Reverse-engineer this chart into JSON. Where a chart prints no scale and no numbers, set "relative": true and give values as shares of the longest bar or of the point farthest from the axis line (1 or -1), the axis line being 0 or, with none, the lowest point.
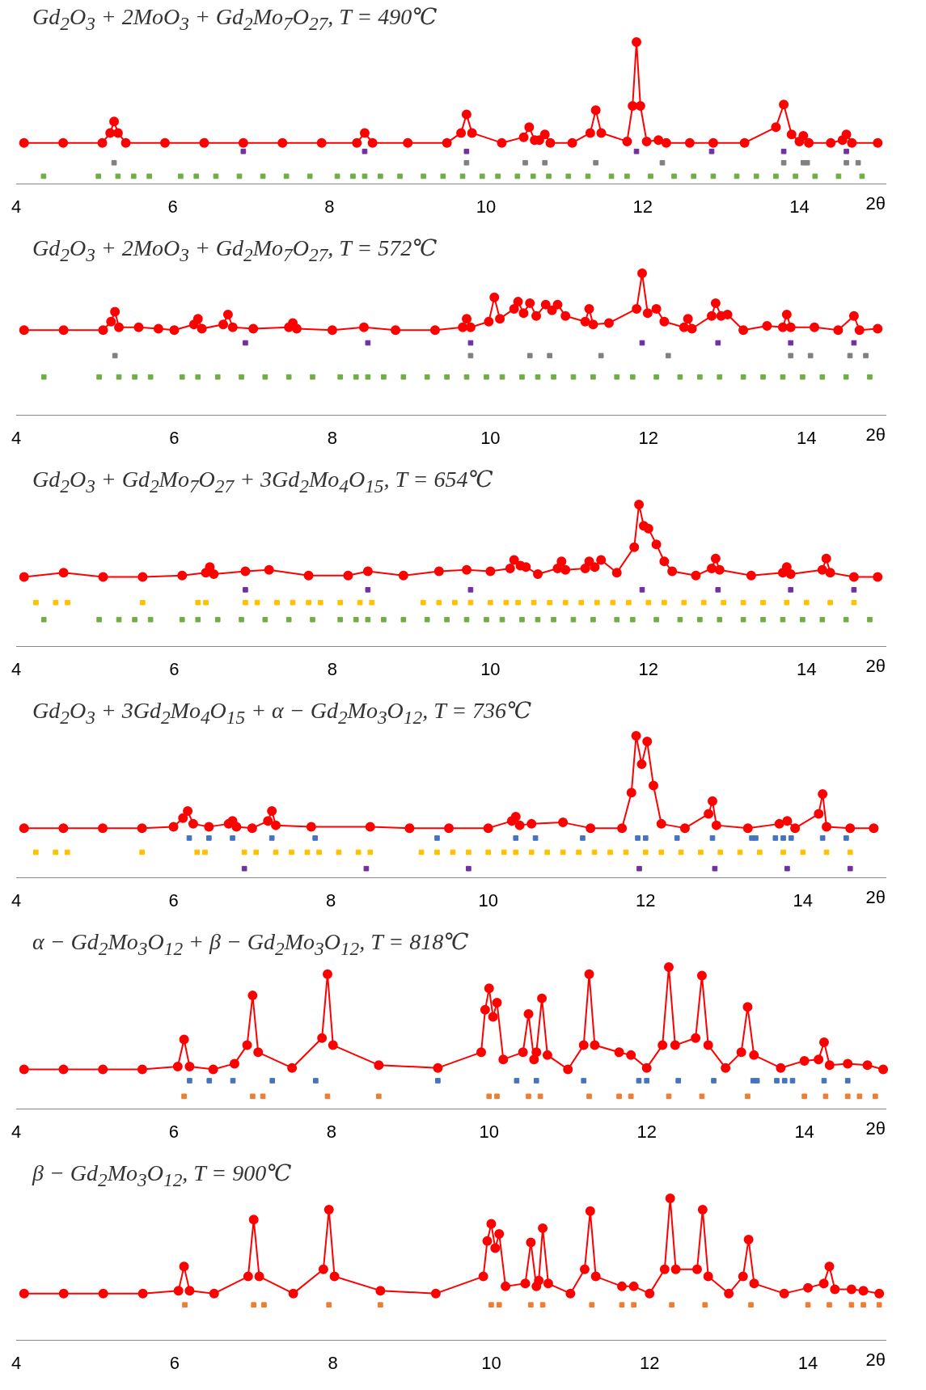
{
  "chart_data": [
    {
      "type": "line",
      "title": "Gd$_{2}$O$_{3}$ + 2MoO$_{3}$ + Gd$_{2}$Mo$_{7}$O$_{27}$, T = 490℃",
      "xlabel": "2θ",
      "relative": true,
      "marker": "circle",
      "xlim": [
        4,
        15.1
      ],
      "xticks": [
        4,
        6,
        8,
        10,
        12,
        14
      ],
      "series": [
        {
          "color": "#ff0000",
          "x": [
            4.1,
            4.6,
            5.1,
            5.2,
            5.25,
            5.3,
            5.4,
            5.9,
            6.4,
            6.9,
            7.4,
            7.9,
            8.35,
            8.45,
            8.55,
            9.0,
            9.5,
            9.68,
            9.75,
            9.82,
            10.2,
            10.48,
            10.55,
            10.62,
            10.68,
            10.75,
            10.82,
            11.1,
            11.33,
            11.4,
            11.47,
            11.8,
            11.87,
            11.92,
            11.97,
            12.05,
            12.2,
            12.3,
            12.6,
            12.9,
            13.3,
            13.7,
            13.8,
            13.9,
            14.0,
            14.05,
            14.12,
            14.4,
            14.55,
            14.6,
            14.67,
            15.0
          ],
          "values": [
            0.29,
            0.29,
            0.29,
            0.36,
            0.44,
            0.36,
            0.29,
            0.29,
            0.29,
            0.29,
            0.29,
            0.29,
            0.29,
            0.36,
            0.29,
            0.29,
            0.29,
            0.36,
            0.49,
            0.36,
            0.29,
            0.33,
            0.4,
            0.31,
            0.31,
            0.35,
            0.29,
            0.29,
            0.36,
            0.52,
            0.36,
            0.3,
            0.55,
            1.0,
            0.55,
            0.3,
            0.31,
            0.29,
            0.29,
            0.29,
            0.29,
            0.4,
            0.56,
            0.35,
            0.3,
            0.34,
            0.29,
            0.29,
            0.31,
            0.35,
            0.29,
            0.29
          ]
        },
        {
          "type": "scatter",
          "marker": "square",
          "color": "#7030a0",
          "x": [
            6.9,
            8.45,
            9.75,
            11.92,
            12.88,
            13.8,
            14.6
          ],
          "values": [
            0.23,
            0.23,
            0.23,
            0.23,
            0.23,
            0.23,
            0.23
          ]
        },
        {
          "type": "scatter",
          "marker": "square",
          "color": "#808080",
          "x": [
            5.25,
            9.75,
            10.5,
            10.75,
            11.4,
            12.25,
            13.8,
            14.05,
            14.1,
            14.6,
            14.75
          ],
          "values": [
            0.15,
            0.15,
            0.15,
            0.15,
            0.15,
            0.15,
            0.15,
            0.15,
            0.15,
            0.15,
            0.15
          ]
        },
        {
          "type": "scatter",
          "marker": "square",
          "color": "#70ad47",
          "x": [
            4.35,
            5.05,
            5.3,
            5.5,
            5.7,
            6.1,
            6.3,
            6.55,
            6.85,
            7.15,
            7.45,
            7.75,
            8.1,
            8.3,
            8.45,
            8.65,
            8.9,
            9.2,
            9.45,
            9.7,
            9.95,
            10.15,
            10.4,
            10.6,
            10.8,
            11.05,
            11.3,
            11.6,
            11.8,
            12.1,
            12.4,
            12.65,
            12.9,
            13.2,
            13.45,
            13.7,
            13.95,
            14.2,
            14.5,
            14.8
          ],
          "values": [
            0.055,
            0.055,
            0.055,
            0.055,
            0.055,
            0.055,
            0.055,
            0.055,
            0.055,
            0.055,
            0.055,
            0.055,
            0.055,
            0.055,
            0.055,
            0.055,
            0.055,
            0.055,
            0.055,
            0.055,
            0.055,
            0.055,
            0.055,
            0.055,
            0.055,
            0.055,
            0.055,
            0.055,
            0.055,
            0.055,
            0.055,
            0.055,
            0.055,
            0.055,
            0.055,
            0.055,
            0.055,
            0.055,
            0.055,
            0.055
          ]
        }
      ]
    },
    {
      "type": "line",
      "title": "Gd$_{2}$O$_{3}$ + 2MoO$_{3}$ + Gd$_{2}$Mo$_{7}$O$_{27}$, T = 572℃",
      "xlabel": "2θ",
      "relative": true,
      "marker": "circle",
      "xlim": [
        4,
        15
      ],
      "xticks": [
        4,
        6,
        8,
        10,
        12,
        14
      ],
      "series": [
        {
          "color": "#ff0000",
          "x": [
            4.1,
            4.6,
            5.1,
            5.2,
            5.25,
            5.3,
            5.55,
            5.8,
            6.0,
            6.25,
            6.3,
            6.35,
            6.62,
            6.68,
            6.74,
            7.0,
            7.45,
            7.5,
            7.55,
            8.0,
            8.4,
            8.8,
            9.3,
            9.65,
            9.7,
            9.75,
            9.98,
            10.05,
            10.12,
            10.3,
            10.35,
            10.42,
            10.5,
            10.58,
            10.7,
            10.78,
            10.85,
            10.95,
            11.2,
            11.25,
            11.3,
            11.5,
            11.85,
            11.92,
            11.99,
            12.1,
            12.2,
            12.45,
            12.5,
            12.55,
            12.8,
            12.85,
            12.92,
            13.0,
            13.2,
            13.5,
            13.7,
            13.75,
            13.8,
            14.1,
            14.4,
            14.6,
            14.67,
            14.9
          ],
          "values": [
            0.6,
            0.6,
            0.6,
            0.66,
            0.73,
            0.62,
            0.62,
            0.61,
            0.6,
            0.64,
            0.68,
            0.61,
            0.64,
            0.71,
            0.62,
            0.61,
            0.62,
            0.65,
            0.61,
            0.6,
            0.62,
            0.6,
            0.6,
            0.62,
            0.68,
            0.62,
            0.66,
            0.83,
            0.68,
            0.75,
            0.8,
            0.72,
            0.79,
            0.7,
            0.78,
            0.74,
            0.78,
            0.7,
            0.66,
            0.75,
            0.64,
            0.65,
            0.75,
            1.0,
            0.72,
            0.75,
            0.66,
            0.62,
            0.68,
            0.61,
            0.7,
            0.79,
            0.7,
            0.71,
            0.6,
            0.63,
            0.62,
            0.71,
            0.62,
            0.62,
            0.6,
            0.7,
            0.6,
            0.61
          ]
        },
        {
          "type": "scatter",
          "marker": "square",
          "color": "#7030a0",
          "x": [
            6.9,
            8.45,
            9.75,
            11.92,
            12.88,
            13.8,
            14.6
          ],
          "values": [
            0.51,
            0.51,
            0.51,
            0.51,
            0.51,
            0.51,
            0.51
          ]
        },
        {
          "type": "scatter",
          "marker": "square",
          "color": "#808080",
          "x": [
            5.25,
            9.75,
            10.5,
            10.75,
            11.4,
            12.25,
            13.8,
            14.05,
            14.55,
            14.75
          ],
          "values": [
            0.42,
            0.42,
            0.42,
            0.42,
            0.42,
            0.42,
            0.42,
            0.42,
            0.42,
            0.42
          ]
        },
        {
          "type": "scatter",
          "marker": "square",
          "color": "#70ad47",
          "x": [
            4.35,
            5.05,
            5.3,
            5.5,
            5.7,
            6.1,
            6.3,
            6.55,
            6.85,
            7.15,
            7.45,
            7.75,
            8.1,
            8.3,
            8.45,
            8.65,
            8.9,
            9.2,
            9.45,
            9.7,
            9.95,
            10.15,
            10.4,
            10.6,
            10.8,
            11.05,
            11.3,
            11.6,
            11.8,
            12.1,
            12.4,
            12.65,
            12.9,
            13.2,
            13.45,
            13.7,
            13.95,
            14.2,
            14.5,
            14.8
          ],
          "values": [
            0.27,
            0.27,
            0.27,
            0.27,
            0.27,
            0.27,
            0.27,
            0.27,
            0.27,
            0.27,
            0.27,
            0.27,
            0.27,
            0.27,
            0.27,
            0.27,
            0.27,
            0.27,
            0.27,
            0.27,
            0.27,
            0.27,
            0.27,
            0.27,
            0.27,
            0.27,
            0.27,
            0.27,
            0.27,
            0.27,
            0.27,
            0.27,
            0.27,
            0.27,
            0.27,
            0.27,
            0.27,
            0.27,
            0.27,
            0.27
          ]
        }
      ]
    },
    {
      "type": "line",
      "title": "Gd$_{2}$O$_{3}$ + Gd$_{2}$Mo$_{7}$O$_{27}$ + 3Gd$_{2}$Mo$_{4}$O$_{15}$, T = 654℃",
      "xlabel": "2θ",
      "relative": true,
      "marker": "circle",
      "xlim": [
        4,
        15
      ],
      "xticks": [
        4,
        6,
        8,
        10,
        12,
        14
      ],
      "series": [
        {
          "color": "#ff0000",
          "x": [
            4.1,
            4.6,
            5.1,
            5.6,
            6.1,
            6.4,
            6.45,
            6.5,
            6.9,
            7.2,
            7.7,
            8.2,
            8.45,
            8.9,
            9.35,
            9.7,
            10.0,
            10.25,
            10.3,
            10.38,
            10.45,
            10.6,
            10.85,
            10.9,
            10.95,
            11.2,
            11.25,
            11.32,
            11.4,
            11.6,
            11.82,
            11.88,
            11.94,
            12.0,
            12.1,
            12.2,
            12.3,
            12.6,
            12.8,
            12.85,
            12.9,
            13.3,
            13.7,
            13.75,
            13.8,
            14.2,
            14.25,
            14.3,
            14.6,
            14.9
          ],
          "values": [
            0.49,
            0.52,
            0.49,
            0.49,
            0.5,
            0.52,
            0.56,
            0.51,
            0.53,
            0.54,
            0.5,
            0.5,
            0.53,
            0.5,
            0.53,
            0.54,
            0.53,
            0.55,
            0.61,
            0.57,
            0.56,
            0.51,
            0.55,
            0.6,
            0.54,
            0.55,
            0.6,
            0.56,
            0.61,
            0.52,
            0.7,
            1.0,
            0.85,
            0.83,
            0.72,
            0.6,
            0.53,
            0.5,
            0.55,
            0.62,
            0.54,
            0.5,
            0.52,
            0.56,
            0.51,
            0.54,
            0.62,
            0.52,
            0.49,
            0.49
          ]
        },
        {
          "type": "scatter",
          "marker": "square",
          "color": "#7030a0",
          "x": [
            6.9,
            8.45,
            9.75,
            11.92,
            12.88,
            13.8,
            14.6
          ],
          "values": [
            0.4,
            0.4,
            0.4,
            0.4,
            0.4,
            0.4,
            0.4
          ]
        },
        {
          "type": "scatter",
          "marker": "square",
          "color": "#ffc000",
          "x": [
            4.25,
            4.5,
            4.65,
            5.6,
            6.3,
            6.4,
            6.9,
            7.05,
            7.3,
            7.5,
            7.7,
            7.85,
            8.1,
            8.35,
            8.5,
            9.15,
            9.35,
            9.55,
            9.75,
            10.0,
            10.2,
            10.35,
            10.55,
            10.75,
            10.95,
            11.15,
            11.35,
            11.55,
            11.75,
            12.0,
            12.2,
            12.45,
            12.7,
            12.95,
            13.2,
            13.45,
            13.75,
            14.0,
            14.3,
            14.6
          ],
          "values": [
            0.31,
            0.31,
            0.31,
            0.31,
            0.31,
            0.31,
            0.31,
            0.31,
            0.31,
            0.31,
            0.31,
            0.31,
            0.31,
            0.31,
            0.31,
            0.31,
            0.31,
            0.31,
            0.31,
            0.31,
            0.31,
            0.31,
            0.31,
            0.31,
            0.31,
            0.31,
            0.31,
            0.31,
            0.31,
            0.31,
            0.31,
            0.31,
            0.31,
            0.31,
            0.31,
            0.31,
            0.31,
            0.31,
            0.31,
            0.31
          ]
        },
        {
          "type": "scatter",
          "marker": "square",
          "color": "#70ad47",
          "x": [
            4.35,
            5.05,
            5.3,
            5.5,
            5.7,
            6.1,
            6.3,
            6.55,
            6.85,
            7.15,
            7.45,
            7.75,
            8.1,
            8.3,
            8.45,
            8.65,
            8.9,
            9.2,
            9.45,
            9.7,
            9.95,
            10.15,
            10.4,
            10.6,
            10.8,
            11.05,
            11.3,
            11.6,
            11.8,
            12.1,
            12.4,
            12.65,
            12.9,
            13.2,
            13.45,
            13.7,
            13.95,
            14.2,
            14.5,
            14.8
          ],
          "values": [
            0.19,
            0.19,
            0.19,
            0.19,
            0.19,
            0.19,
            0.19,
            0.19,
            0.19,
            0.19,
            0.19,
            0.19,
            0.19,
            0.19,
            0.19,
            0.19,
            0.19,
            0.19,
            0.19,
            0.19,
            0.19,
            0.19,
            0.19,
            0.19,
            0.19,
            0.19,
            0.19,
            0.19,
            0.19,
            0.19,
            0.19,
            0.19,
            0.19,
            0.19,
            0.19,
            0.19,
            0.19,
            0.19,
            0.19,
            0.19
          ]
        }
      ]
    },
    {
      "type": "line",
      "title": "Gd$_{2}$O$_{3}$ + 3Gd$_{2}$Mo$_{4}$O$_{15}$ + α − Gd$_{2}$Mo$_{3}$O$_{12}$, T = 736℃",
      "xlabel": "2θ",
      "relative": true,
      "marker": "circle",
      "xlim": [
        4,
        15.05
      ],
      "xticks": [
        4,
        6,
        8,
        10,
        12,
        14
      ],
      "series": [
        {
          "color": "#ff0000",
          "x": [
            4.1,
            4.6,
            5.1,
            5.6,
            6.0,
            6.12,
            6.18,
            6.25,
            6.45,
            6.7,
            6.75,
            6.8,
            7.0,
            7.2,
            7.25,
            7.3,
            7.75,
            8.5,
            9.0,
            9.5,
            10.0,
            10.3,
            10.35,
            10.4,
            10.55,
            10.95,
            11.3,
            11.7,
            11.82,
            11.88,
            11.95,
            12.02,
            12.1,
            12.2,
            12.5,
            12.8,
            12.85,
            12.9,
            13.3,
            13.7,
            13.8,
            13.9,
            14.2,
            14.25,
            14.3,
            14.6,
            14.9
          ],
          "values": [
            0.35,
            0.35,
            0.35,
            0.35,
            0.36,
            0.42,
            0.47,
            0.38,
            0.36,
            0.38,
            0.4,
            0.36,
            0.35,
            0.4,
            0.47,
            0.37,
            0.36,
            0.36,
            0.35,
            0.35,
            0.35,
            0.4,
            0.43,
            0.37,
            0.38,
            0.39,
            0.35,
            0.35,
            0.6,
            1.0,
            0.8,
            0.96,
            0.65,
            0.38,
            0.35,
            0.45,
            0.54,
            0.37,
            0.35,
            0.38,
            0.4,
            0.35,
            0.45,
            0.59,
            0.36,
            0.35,
            0.35
          ]
        },
        {
          "type": "scatter",
          "marker": "square",
          "color": "#4472c4",
          "x": [
            6.2,
            6.45,
            6.75,
            7.25,
            7.8,
            9.35,
            10.35,
            10.6,
            11.2,
            11.9,
            12.0,
            12.4,
            12.85,
            13.35,
            13.4,
            13.65,
            13.75,
            13.85,
            14.25,
            14.55
          ],
          "values": [
            0.28,
            0.28,
            0.28,
            0.28,
            0.28,
            0.28,
            0.28,
            0.28,
            0.28,
            0.28,
            0.28,
            0.28,
            0.28,
            0.28,
            0.28,
            0.28,
            0.28,
            0.28,
            0.28,
            0.28
          ]
        },
        {
          "type": "scatter",
          "marker": "square",
          "color": "#ffc000",
          "x": [
            4.25,
            4.5,
            4.65,
            5.6,
            6.3,
            6.4,
            6.9,
            7.05,
            7.3,
            7.5,
            7.7,
            7.85,
            8.1,
            8.35,
            8.5,
            9.15,
            9.35,
            9.55,
            9.75,
            10.0,
            10.2,
            10.35,
            10.55,
            10.75,
            10.95,
            11.15,
            11.35,
            11.55,
            11.75,
            12.0,
            12.2,
            12.45,
            12.7,
            12.95,
            13.2,
            13.45,
            13.75,
            14.0,
            14.3,
            14.6
          ],
          "values": [
            0.18,
            0.18,
            0.18,
            0.18,
            0.18,
            0.18,
            0.18,
            0.18,
            0.18,
            0.18,
            0.18,
            0.18,
            0.18,
            0.18,
            0.18,
            0.18,
            0.18,
            0.18,
            0.18,
            0.18,
            0.18,
            0.18,
            0.18,
            0.18,
            0.18,
            0.18,
            0.18,
            0.18,
            0.18,
            0.18,
            0.18,
            0.18,
            0.18,
            0.18,
            0.18,
            0.18,
            0.18,
            0.18,
            0.18,
            0.18
          ]
        },
        {
          "type": "scatter",
          "marker": "square",
          "color": "#7030a0",
          "x": [
            6.9,
            8.45,
            9.75,
            11.92,
            12.88,
            13.8,
            14.6
          ],
          "values": [
            0.065,
            0.065,
            0.065,
            0.065,
            0.065,
            0.065,
            0.065
          ]
        }
      ]
    },
    {
      "type": "line",
      "title": "α − Gd$_{2}$Mo$_{3}$O$_{12}$ + β − Gd$_{2}$Mo$_{3}$O$_{12}$, T = 818℃",
      "xlabel": "2θ",
      "relative": true,
      "marker": "circle",
      "xlim": [
        4,
        15.03
      ],
      "xticks": [
        4,
        6,
        8,
        10,
        12,
        14
      ],
      "series": [
        {
          "color": "#ff0000",
          "x": [
            4.1,
            4.6,
            5.1,
            5.6,
            6.05,
            6.13,
            6.2,
            6.5,
            6.77,
            6.93,
            7.0,
            7.07,
            7.5,
            7.88,
            7.95,
            8.02,
            8.6,
            9.35,
            9.9,
            9.95,
            10.0,
            10.05,
            10.1,
            10.18,
            10.43,
            10.5,
            10.57,
            10.6,
            10.67,
            10.74,
            11.0,
            11.2,
            11.27,
            11.34,
            11.65,
            11.8,
            12.0,
            12.2,
            12.28,
            12.36,
            12.62,
            12.7,
            12.78,
            13.0,
            13.2,
            13.28,
            13.36,
            13.7,
            14.0,
            14.18,
            14.25,
            14.32,
            14.55,
            14.8,
            15.0
          ],
          "values": [
            0.28,
            0.28,
            0.28,
            0.28,
            0.3,
            0.49,
            0.3,
            0.28,
            0.32,
            0.45,
            0.8,
            0.4,
            0.29,
            0.5,
            0.95,
            0.45,
            0.31,
            0.29,
            0.4,
            0.7,
            0.85,
            0.65,
            0.75,
            0.35,
            0.4,
            0.67,
            0.35,
            0.4,
            0.78,
            0.38,
            0.28,
            0.45,
            0.95,
            0.45,
            0.4,
            0.38,
            0.29,
            0.45,
            1.0,
            0.45,
            0.5,
            0.94,
            0.45,
            0.29,
            0.4,
            0.72,
            0.38,
            0.29,
            0.34,
            0.35,
            0.47,
            0.31,
            0.32,
            0.31,
            0.28
          ]
        },
        {
          "type": "scatter",
          "marker": "square",
          "color": "#4472c4",
          "x": [
            6.2,
            6.45,
            6.75,
            7.25,
            7.8,
            9.35,
            10.35,
            10.6,
            11.2,
            11.9,
            12.0,
            12.4,
            12.85,
            13.35,
            13.4,
            13.65,
            13.75,
            13.85,
            14.25,
            14.55
          ],
          "values": [
            0.2,
            0.2,
            0.2,
            0.2,
            0.2,
            0.2,
            0.2,
            0.2,
            0.2,
            0.2,
            0.2,
            0.2,
            0.2,
            0.2,
            0.2,
            0.2,
            0.2,
            0.2,
            0.2,
            0.2
          ]
        },
        {
          "type": "scatter",
          "marker": "square",
          "color": "#ed7d31",
          "x": [
            6.13,
            7.0,
            7.13,
            7.95,
            8.6,
            10.0,
            10.1,
            10.5,
            10.65,
            11.27,
            11.65,
            11.8,
            12.28,
            12.7,
            13.28,
            14.0,
            14.27,
            14.55,
            14.7,
            14.9
          ],
          "values": [
            0.09,
            0.09,
            0.09,
            0.09,
            0.09,
            0.09,
            0.09,
            0.09,
            0.09,
            0.09,
            0.09,
            0.09,
            0.09,
            0.09,
            0.09,
            0.09,
            0.09,
            0.09,
            0.09,
            0.09
          ]
        }
      ]
    },
    {
      "type": "line",
      "title": "β − Gd$_{2}$Mo$_{3}$O$_{12}$, T = 900℃",
      "xlabel": "2θ",
      "relative": true,
      "marker": "circle",
      "xlim": [
        4,
        14.98
      ],
      "xticks": [
        4,
        6,
        8,
        10,
        12,
        14
      ],
      "series": [
        {
          "color": "#ff0000",
          "x": [
            4.1,
            4.6,
            5.1,
            5.6,
            6.05,
            6.12,
            6.19,
            6.5,
            6.93,
            7.0,
            7.07,
            7.5,
            7.88,
            7.95,
            8.02,
            8.6,
            9.3,
            9.9,
            9.95,
            10.0,
            10.05,
            10.1,
            10.18,
            10.43,
            10.5,
            10.57,
            10.6,
            10.65,
            10.72,
            11.0,
            11.18,
            11.25,
            11.32,
            11.65,
            11.8,
            12.0,
            12.19,
            12.26,
            12.33,
            12.6,
            12.67,
            12.74,
            13.0,
            13.18,
            13.25,
            13.32,
            13.7,
            14.0,
            14.2,
            14.27,
            14.34,
            14.55,
            14.7,
            14.9
          ],
          "values": [
            0.33,
            0.33,
            0.33,
            0.33,
            0.35,
            0.52,
            0.35,
            0.33,
            0.45,
            0.85,
            0.45,
            0.33,
            0.5,
            0.92,
            0.45,
            0.35,
            0.33,
            0.45,
            0.7,
            0.82,
            0.65,
            0.75,
            0.38,
            0.4,
            0.69,
            0.38,
            0.42,
            0.79,
            0.4,
            0.33,
            0.5,
            0.91,
            0.45,
            0.38,
            0.38,
            0.33,
            0.5,
            1.0,
            0.5,
            0.5,
            0.92,
            0.45,
            0.33,
            0.45,
            0.71,
            0.4,
            0.33,
            0.37,
            0.4,
            0.52,
            0.36,
            0.36,
            0.35,
            0.33
          ]
        },
        {
          "type": "scatter",
          "marker": "square",
          "color": "#ed7d31",
          "x": [
            6.13,
            7.0,
            7.13,
            7.95,
            8.6,
            10.0,
            10.1,
            10.5,
            10.65,
            11.27,
            11.65,
            11.8,
            12.28,
            12.7,
            13.28,
            14.0,
            14.27,
            14.55,
            14.7,
            14.9
          ],
          "values": [
            0.25,
            0.25,
            0.25,
            0.25,
            0.25,
            0.25,
            0.25,
            0.25,
            0.25,
            0.25,
            0.25,
            0.25,
            0.25,
            0.25,
            0.25,
            0.25,
            0.25,
            0.25,
            0.25,
            0.25
          ]
        }
      ]
    }
  ]
}
